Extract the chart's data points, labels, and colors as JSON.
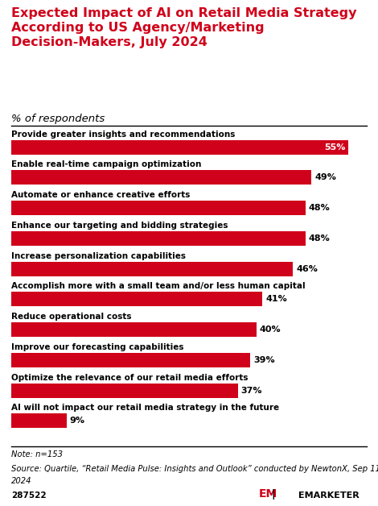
{
  "title": "Expected Impact of AI on Retail Media Strategy\nAccording to US Agency/Marketing\nDecision-Makers, July 2024",
  "subtitle": "% of respondents",
  "categories": [
    "Provide greater insights and recommendations",
    "Enable real-time campaign optimization",
    "Automate or enhance creative efforts",
    "Enhance our targeting and bidding strategies",
    "Increase personalization capabilities",
    "Accomplish more with a small team and/or less human capital",
    "Reduce operational costs",
    "Improve our forecasting capabilities",
    "Optimize the relevance of our retail media efforts",
    "AI will not impact our retail media strategy in the future"
  ],
  "values": [
    55,
    49,
    48,
    48,
    46,
    41,
    40,
    39,
    37,
    9
  ],
  "bar_color": "#d0021b",
  "title_color": "#d0021b",
  "label_color": "#000000",
  "value_color_inside": "#ffffff",
  "value_color_outside": "#000000",
  "background_color": "#ffffff",
  "note_line1": "Note: n=153",
  "note_line2": "Source: Quartile, “Retail Media Pulse: Insights and Outlook” conducted by NewtonX, Sep 11,",
  "note_line3": "2024",
  "footer_id": "287522",
  "emarketer_text": "EMARKETER",
  "xlim_max": 58,
  "inside_threshold": 50
}
